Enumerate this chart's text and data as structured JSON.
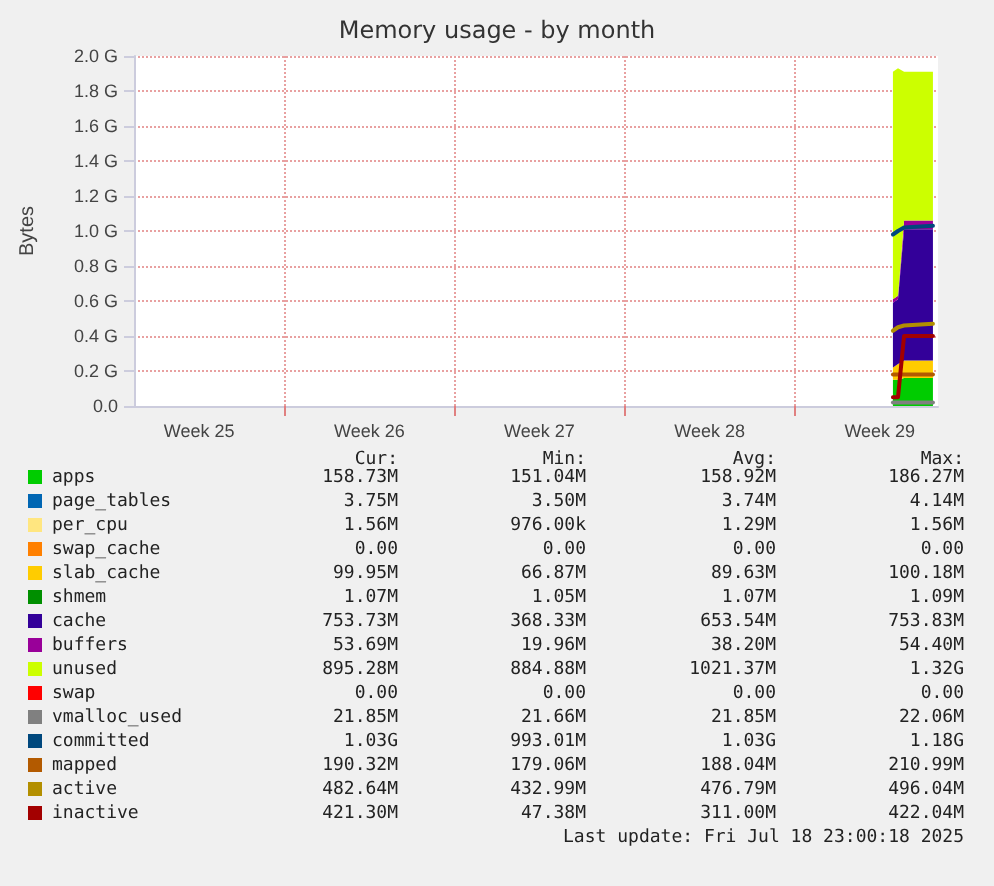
{
  "chart_data": {
    "type": "area",
    "title": "Memory usage - by month",
    "ylabel": "Bytes",
    "stacked": true,
    "grid": true,
    "legend": "bottom",
    "marker": "none",
    "line_style": "solid",
    "xlim": [
      "2025-06-16T19:40",
      "2025-07-19T21:30"
    ],
    "xticks": [
      {
        "value": "2025-06-19T12:00",
        "label": "Week 25"
      },
      {
        "value": "2025-06-23T00:00",
        "label": null
      },
      {
        "value": "2025-06-26T12:00",
        "label": "Week 26"
      },
      {
        "value": "2025-06-30T00:00",
        "label": null
      },
      {
        "value": "2025-07-03T12:00",
        "label": "Week 27"
      },
      {
        "value": "2025-07-07T00:00",
        "label": null
      },
      {
        "value": "2025-07-10T12:00",
        "label": "Week 28"
      },
      {
        "value": "2025-07-14T00:00",
        "label": null
      },
      {
        "value": "2025-07-17T12:00",
        "label": "Week 29"
      }
    ],
    "ylim": [
      0,
      2
    ],
    "yticks": [
      {
        "value": 0,
        "label": "0.0"
      },
      {
        "value": 0.2,
        "label": "0.2 G"
      },
      {
        "value": 0.4,
        "label": "0.4 G"
      },
      {
        "value": 0.6,
        "label": "0.6 G"
      },
      {
        "value": 0.8,
        "label": "0.8 G"
      },
      {
        "value": 1,
        "label": "1.0 G"
      },
      {
        "value": 1.2,
        "label": "1.2 G"
      },
      {
        "value": 1.4,
        "label": "1.4 G"
      },
      {
        "value": 1.6,
        "label": "1.6 G"
      },
      {
        "value": 1.8,
        "label": "1.8 G"
      },
      {
        "value": 2,
        "label": "2.0 G"
      }
    ],
    "x": [
      "2025-07-18T01:00",
      "2025-07-18T06:00",
      "2025-07-18T12:00",
      "2025-07-19T16:30"
    ],
    "series": [
      {
        "name": "apps",
        "color": "#00cc00",
        "values": [
          0.15,
          0.15,
          0.16,
          0.16
        ]
      },
      {
        "name": "page_tables",
        "color": "#0066b3",
        "values": [
          null,
          null,
          null,
          null
        ]
      },
      {
        "name": "per_cpu",
        "color": "#ffe680",
        "values": [
          null,
          null,
          null,
          null
        ]
      },
      {
        "name": "swap_cache",
        "color": "#ff8000",
        "values": [
          null,
          null,
          null,
          null
        ]
      },
      {
        "name": "slab_cache",
        "color": "#ffcc00",
        "values": [
          0.07,
          0.09,
          0.1,
          0.1
        ]
      },
      {
        "name": "shmem",
        "color": "#008f00",
        "values": [
          null,
          null,
          null,
          null
        ]
      },
      {
        "name": "cache",
        "color": "#330099",
        "values": [
          0.37,
          0.37,
          0.75,
          0.75
        ]
      },
      {
        "name": "buffers",
        "color": "#990099",
        "values": [
          0.02,
          0.02,
          0.05,
          0.05
        ]
      },
      {
        "name": "unused",
        "color": "#ccff00",
        "values": [
          1.3,
          1.3,
          0.85,
          0.85
        ]
      },
      {
        "name": "swap",
        "color": "#ff0000",
        "values": [
          null,
          null,
          null,
          null
        ]
      },
      {
        "name": "vmalloc_used",
        "color": "#808080",
        "type": "line",
        "values": [
          0.02,
          0.02,
          0.02,
          0.02
        ]
      },
      {
        "name": "committed",
        "color": "#00487d",
        "type": "line",
        "values": [
          0.98,
          1.0,
          1.02,
          1.03
        ]
      },
      {
        "name": "mapped",
        "color": "#b35a00",
        "type": "line",
        "values": [
          0.18,
          0.18,
          0.18,
          0.18
        ]
      },
      {
        "name": "active",
        "color": "#b38f00",
        "type": "line",
        "values": [
          0.43,
          0.45,
          0.46,
          0.47
        ]
      },
      {
        "name": "inactive",
        "color": "#a30000",
        "type": "line",
        "values": [
          0.05,
          0.05,
          0.4,
          0.4
        ]
      }
    ],
    "annotations": [
      "Cur:",
      "Min:",
      "Avg:",
      "Max:",
      "158.73M",
      "151.04M",
      "158.92M",
      "186.27M",
      "3.75M",
      "3.50M",
      "3.74M",
      "4.14M",
      "1.56M",
      "976.00k",
      "1.29M",
      "1.56M",
      "0.00",
      "0.00",
      "0.00",
      "0.00",
      "99.95M",
      "66.87M",
      "89.63M",
      "100.18M",
      "1.07M",
      "1.05M",
      "1.07M",
      "1.09M",
      "753.73M",
      "368.33M",
      "653.54M",
      "753.83M",
      "53.69M",
      "19.96M",
      "38.20M",
      "54.40M",
      "895.28M",
      "884.88M",
      "1021.37M",
      "1.32G",
      "0.00",
      "0.00",
      "0.00",
      "0.00",
      "21.85M",
      "21.66M",
      "21.85M",
      "22.06M",
      "1.03G",
      "993.01M",
      "1.03G",
      "1.18G",
      "190.32M",
      "179.06M",
      "188.04M",
      "210.99M",
      "482.64M",
      "432.99M",
      "476.79M",
      "496.04M",
      "421.30M",
      "47.38M",
      "311.00M",
      "422.04M",
      "Last update: Fri Jul 18 23:00:18 2025"
    ]
  }
}
